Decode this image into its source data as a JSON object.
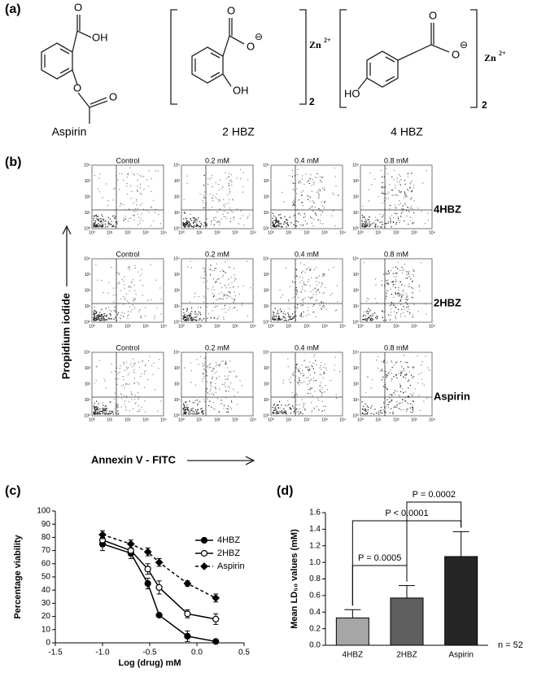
{
  "panel_a": {
    "label": "(a)",
    "compounds": [
      {
        "name": "Aspirin",
        "atoms": [
          "O",
          "OH",
          "O",
          "O"
        ]
      },
      {
        "name": "2 HBZ",
        "atoms": [
          "O",
          "O",
          "⊖",
          "OH",
          "Zn",
          "2+",
          "2"
        ]
      },
      {
        "name": "4 HBZ",
        "atoms": [
          "O",
          "O",
          "⊖",
          "HO",
          "Zn",
          "2+",
          "2"
        ]
      }
    ]
  },
  "panel_b": {
    "label": "(b)",
    "rows": [
      "4HBZ",
      "2HBZ",
      "Aspirin"
    ],
    "columns": [
      "Control",
      "0.2 mM",
      "0.4 mM",
      "0.8 mM"
    ],
    "decade_labels": [
      "10⁰",
      "10¹",
      "10²",
      "10³",
      "10⁴"
    ],
    "y_label": "Propidium iodide",
    "x_label": "Annexin V - FITC"
  },
  "chart_data": [
    {
      "type": "line",
      "panel_label": "(c)",
      "x_label": "Log (drug) mM",
      "y_label": "Percentage viability",
      "xlim": [
        -1.5,
        0.5
      ],
      "xticks": [
        {
          "value": -1.5,
          "label": "-1.5"
        },
        {
          "value": -1,
          "label": "-1.0"
        },
        -0.5,
        {
          "value": 0,
          "label": "0.0"
        },
        0.5
      ],
      "ylim": [
        0,
        100
      ],
      "yticks": [
        0,
        10,
        20,
        30,
        40,
        50,
        60,
        70,
        80,
        90,
        100
      ],
      "legend": "upper right",
      "x": [
        -1,
        -0.7,
        -0.52,
        -0.4,
        -0.1,
        0.2
      ],
      "series": [
        {
          "name": "4HBZ",
          "color": "#000000",
          "dash": false,
          "marker": "filled-circle",
          "values": [
            75,
            68,
            45,
            21,
            5,
            1
          ],
          "errors": [
            5,
            4,
            4,
            1,
            4,
            1
          ]
        },
        {
          "name": "2HBZ",
          "color": "#000000",
          "dash": false,
          "marker": "open-circle",
          "values": [
            78,
            70,
            56,
            42,
            22,
            18
          ],
          "errors": [
            5,
            4,
            4,
            5,
            3,
            4
          ]
        },
        {
          "name": "Aspirin",
          "color": "#000000",
          "dash": true,
          "marker": "diamond",
          "values": [
            82,
            75,
            69,
            61,
            45,
            34
          ],
          "errors": [
            3,
            3,
            3,
            3,
            2,
            3
          ]
        }
      ]
    },
    {
      "type": "bar",
      "panel_label": "(d)",
      "y_label": "Mean LD₅₀ values (mM)",
      "categories": [
        "4HBZ",
        "2HBZ",
        "Aspirin"
      ],
      "values": [
        0.33,
        0.57,
        1.07
      ],
      "errors": [
        0.1,
        0.15,
        0.3
      ],
      "colors": [
        "#a6a6a6",
        "#5f5f5f",
        "#262626"
      ],
      "ylim": [
        0,
        1.6
      ],
      "yticks": [
        {
          "value": 0,
          "label": "0.0"
        },
        0.2,
        0.4,
        0.6,
        0.8,
        {
          "value": 1,
          "label": "1.0"
        },
        1.2,
        1.4,
        1.6
      ],
      "annotations": [
        "P = 0.0005",
        "P < 0.0001",
        "P = 0.0002"
      ],
      "note": "n = 52"
    }
  ]
}
